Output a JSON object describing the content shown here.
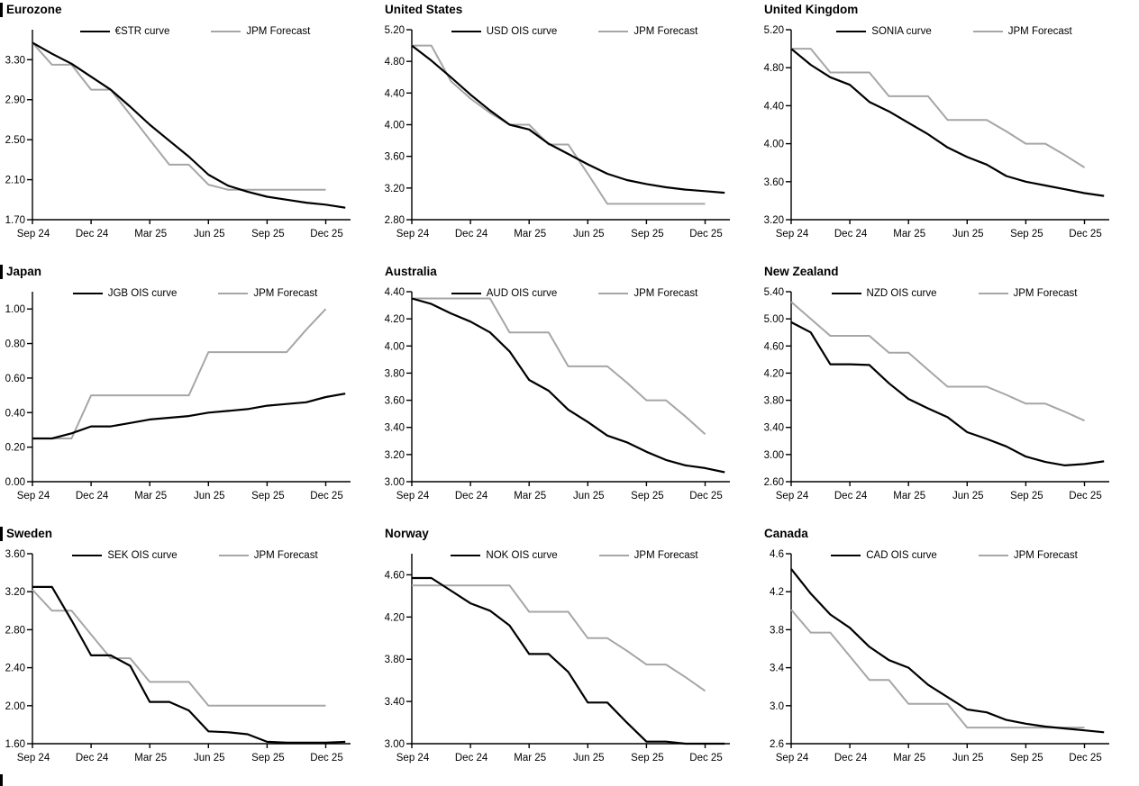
{
  "colors": {
    "ois_black": "#000000",
    "forecast_gray": "#a6a6a6",
    "axis": "#000000",
    "background": "#ffffff"
  },
  "x_tick_labels": [
    "Sep 24",
    "Dec 24",
    "Mar 25",
    "Jun 25",
    "Sep 25",
    "Dec 25"
  ],
  "chart_data": [
    {
      "type": "line",
      "title": "Eurozone",
      "section_bar": true,
      "x_tick_labels": [
        "Sep 24",
        "Dec 24",
        "Mar 25",
        "Jun 25",
        "Sep 25",
        "Dec 25"
      ],
      "y_tick_labels": [
        "3.30",
        "2.90",
        "2.50",
        "2.10",
        "1.70"
      ],
      "ylim": [
        1.7,
        3.6
      ],
      "legend_position": "top",
      "grid": false,
      "series": [
        {
          "name": "€STR curve",
          "color_key": "ois_black",
          "values": [
            3.47,
            3.36,
            3.26,
            3.13,
            3.0,
            2.83,
            2.65,
            2.49,
            2.33,
            2.15,
            2.04,
            1.98,
            1.93,
            1.9,
            1.87,
            1.85,
            1.82
          ]
        },
        {
          "name": "JPM Forecast",
          "color_key": "forecast_gray",
          "values": [
            3.47,
            3.25,
            3.25,
            3.0,
            3.0,
            2.75,
            2.5,
            2.25,
            2.25,
            2.05,
            2.0,
            2.0,
            2.0,
            2.0,
            2.0,
            2.0
          ]
        }
      ]
    },
    {
      "type": "line",
      "title": "United States",
      "section_bar": false,
      "x_tick_labels": [
        "Sep 24",
        "Dec 24",
        "Mar 25",
        "Jun 25",
        "Sep 25",
        "Dec 25"
      ],
      "y_tick_labels": [
        "5.20",
        "4.80",
        "4.40",
        "4.00",
        "3.60",
        "3.20",
        "2.80"
      ],
      "ylim": [
        2.8,
        5.2
      ],
      "legend_position": "top",
      "grid": false,
      "series": [
        {
          "name": "USD OIS curve",
          "color_key": "ois_black",
          "values": [
            5.0,
            4.81,
            4.6,
            4.38,
            4.18,
            4.0,
            3.94,
            3.76,
            3.63,
            3.5,
            3.38,
            3.3,
            3.25,
            3.21,
            3.18,
            3.16,
            3.14
          ]
        },
        {
          "name": "JPM Forecast",
          "color_key": "forecast_gray",
          "values": [
            5.0,
            5.0,
            4.55,
            4.33,
            4.15,
            4.0,
            4.0,
            3.75,
            3.75,
            3.38,
            3.0,
            3.0,
            3.0,
            3.0,
            3.0,
            3.0
          ]
        }
      ]
    },
    {
      "type": "line",
      "title": "United Kingdom",
      "section_bar": false,
      "x_tick_labels": [
        "Sep 24",
        "Dec 24",
        "Mar 25",
        "Jun 25",
        "Sep 25",
        "Dec 25"
      ],
      "y_tick_labels": [
        "5.20",
        "4.80",
        "4.40",
        "4.00",
        "3.60",
        "3.20"
      ],
      "ylim": [
        3.2,
        5.2
      ],
      "legend_position": "top",
      "grid": false,
      "series": [
        {
          "name": "SONIA curve",
          "color_key": "ois_black",
          "values": [
            5.0,
            4.83,
            4.7,
            4.62,
            4.44,
            4.34,
            4.22,
            4.1,
            3.96,
            3.86,
            3.78,
            3.66,
            3.6,
            3.56,
            3.52,
            3.48,
            3.45
          ]
        },
        {
          "name": "JPM Forecast",
          "color_key": "forecast_gray",
          "values": [
            5.0,
            5.0,
            4.75,
            4.75,
            4.75,
            4.5,
            4.5,
            4.5,
            4.25,
            4.25,
            4.25,
            4.13,
            4.0,
            4.0,
            3.88,
            3.75
          ]
        }
      ]
    },
    {
      "type": "line",
      "title": "Japan",
      "section_bar": true,
      "x_tick_labels": [
        "Sep 24",
        "Dec 24",
        "Mar 25",
        "Jun 25",
        "Sep 25",
        "Dec 25"
      ],
      "y_tick_labels": [
        "1.00",
        "0.80",
        "0.60",
        "0.40",
        "0.20",
        "0.00"
      ],
      "ylim": [
        0.0,
        1.1
      ],
      "legend_position": "top",
      "grid": false,
      "series": [
        {
          "name": "JGB OIS curve",
          "color_key": "ois_black",
          "values": [
            0.25,
            0.25,
            0.28,
            0.32,
            0.32,
            0.34,
            0.36,
            0.37,
            0.38,
            0.4,
            0.41,
            0.42,
            0.44,
            0.45,
            0.46,
            0.49,
            0.51
          ]
        },
        {
          "name": "JPM Forecast",
          "color_key": "forecast_gray",
          "values": [
            0.25,
            0.25,
            0.25,
            0.5,
            0.5,
            0.5,
            0.5,
            0.5,
            0.5,
            0.75,
            0.75,
            0.75,
            0.75,
            0.75,
            0.88,
            1.0
          ]
        }
      ]
    },
    {
      "type": "line",
      "title": "Australia",
      "section_bar": false,
      "x_tick_labels": [
        "Sep 24",
        "Dec 24",
        "Mar 25",
        "Jun 25",
        "Sep 25",
        "Dec 25"
      ],
      "y_tick_labels": [
        "4.40",
        "4.20",
        "4.00",
        "3.80",
        "3.60",
        "3.40",
        "3.20",
        "3.00"
      ],
      "ylim": [
        3.0,
        4.4
      ],
      "legend_position": "top",
      "grid": false,
      "series": [
        {
          "name": "AUD OIS curve",
          "color_key": "ois_black",
          "values": [
            4.35,
            4.31,
            4.24,
            4.18,
            4.1,
            3.96,
            3.75,
            3.67,
            3.53,
            3.44,
            3.34,
            3.29,
            3.22,
            3.16,
            3.12,
            3.1,
            3.07
          ]
        },
        {
          "name": "JPM Forecast",
          "color_key": "forecast_gray",
          "values": [
            4.35,
            4.35,
            4.35,
            4.35,
            4.35,
            4.1,
            4.1,
            4.1,
            3.85,
            3.85,
            3.85,
            3.73,
            3.6,
            3.6,
            3.48,
            3.35
          ]
        }
      ]
    },
    {
      "type": "line",
      "title": "New Zealand",
      "section_bar": false,
      "x_tick_labels": [
        "Sep 24",
        "Dec 24",
        "Mar 25",
        "Jun 25",
        "Sep 25",
        "Dec 25"
      ],
      "y_tick_labels": [
        "5.40",
        "5.00",
        "4.60",
        "4.20",
        "3.80",
        "3.40",
        "3.00",
        "2.60"
      ],
      "ylim": [
        2.6,
        5.4
      ],
      "legend_position": "top",
      "grid": false,
      "series": [
        {
          "name": "NZD OIS curve",
          "color_key": "ois_black",
          "values": [
            4.95,
            4.8,
            4.33,
            4.33,
            4.32,
            4.05,
            3.82,
            3.68,
            3.55,
            3.33,
            3.23,
            3.12,
            2.97,
            2.89,
            2.84,
            2.86,
            2.9
          ]
        },
        {
          "name": "JPM Forecast",
          "color_key": "forecast_gray",
          "values": [
            5.25,
            5.0,
            4.75,
            4.75,
            4.75,
            4.5,
            4.5,
            4.25,
            4.0,
            4.0,
            4.0,
            3.88,
            3.75,
            3.75,
            3.63,
            3.5
          ]
        }
      ]
    },
    {
      "type": "line",
      "title": "Sweden",
      "section_bar": true,
      "x_tick_labels": [
        "Sep 24",
        "Dec 24",
        "Mar 25",
        "Jun 25",
        "Sep 25",
        "Dec 25"
      ],
      "y_tick_labels": [
        "3.60",
        "3.20",
        "2.80",
        "2.40",
        "2.00",
        "1.60"
      ],
      "ylim": [
        1.6,
        3.6
      ],
      "legend_position": "top",
      "grid": false,
      "series": [
        {
          "name": "SEK OIS curve",
          "color_key": "ois_black",
          "values": [
            3.25,
            3.25,
            2.9,
            2.53,
            2.53,
            2.42,
            2.04,
            2.04,
            1.95,
            1.73,
            1.72,
            1.7,
            1.62,
            1.61,
            1.61,
            1.61,
            1.62
          ]
        },
        {
          "name": "JPM Forecast",
          "color_key": "forecast_gray",
          "values": [
            3.22,
            3.0,
            3.0,
            2.75,
            2.5,
            2.5,
            2.25,
            2.25,
            2.25,
            2.0,
            2.0,
            2.0,
            2.0,
            2.0,
            2.0,
            2.0
          ]
        }
      ]
    },
    {
      "type": "line",
      "title": "Norway",
      "section_bar": false,
      "x_tick_labels": [
        "Sep 24",
        "Dec 24",
        "Mar 25",
        "Jun 25",
        "Sep 25",
        "Dec 25"
      ],
      "y_tick_labels": [
        "4.60",
        "4.20",
        "3.80",
        "3.40",
        "3.00"
      ],
      "ylim": [
        3.0,
        4.8
      ],
      "legend_position": "top",
      "grid": false,
      "series": [
        {
          "name": "NOK OIS curve",
          "color_key": "ois_black",
          "values": [
            4.57,
            4.57,
            4.45,
            4.33,
            4.26,
            4.12,
            3.85,
            3.85,
            3.68,
            3.39,
            3.39,
            3.2,
            3.02,
            3.02,
            3.0,
            3.0,
            3.0
          ]
        },
        {
          "name": "JPM Forecast",
          "color_key": "forecast_gray",
          "values": [
            4.5,
            4.5,
            4.5,
            4.5,
            4.5,
            4.5,
            4.25,
            4.25,
            4.25,
            4.0,
            4.0,
            3.88,
            3.75,
            3.75,
            3.63,
            3.5
          ]
        }
      ]
    },
    {
      "type": "line",
      "title": "Canada",
      "section_bar": false,
      "x_tick_labels": [
        "Sep 24",
        "Dec 24",
        "Mar 25",
        "Jun 25",
        "Sep 25",
        "Dec 25"
      ],
      "y_tick_labels": [
        "4.6",
        "4.2",
        "3.8",
        "3.4",
        "3.0",
        "2.6"
      ],
      "ylim": [
        2.6,
        4.6
      ],
      "legend_position": "top",
      "grid": false,
      "series": [
        {
          "name": "CAD OIS curve",
          "color_key": "ois_black",
          "values": [
            4.44,
            4.18,
            3.96,
            3.82,
            3.62,
            3.48,
            3.4,
            3.22,
            3.09,
            2.96,
            2.93,
            2.85,
            2.81,
            2.78,
            2.76,
            2.74,
            2.72
          ]
        },
        {
          "name": "JPM Forecast",
          "color_key": "forecast_gray",
          "values": [
            4.01,
            3.77,
            3.77,
            3.52,
            3.27,
            3.27,
            3.02,
            3.02,
            3.02,
            2.77,
            2.77,
            2.77,
            2.77,
            2.77,
            2.77,
            2.77
          ]
        }
      ]
    }
  ]
}
